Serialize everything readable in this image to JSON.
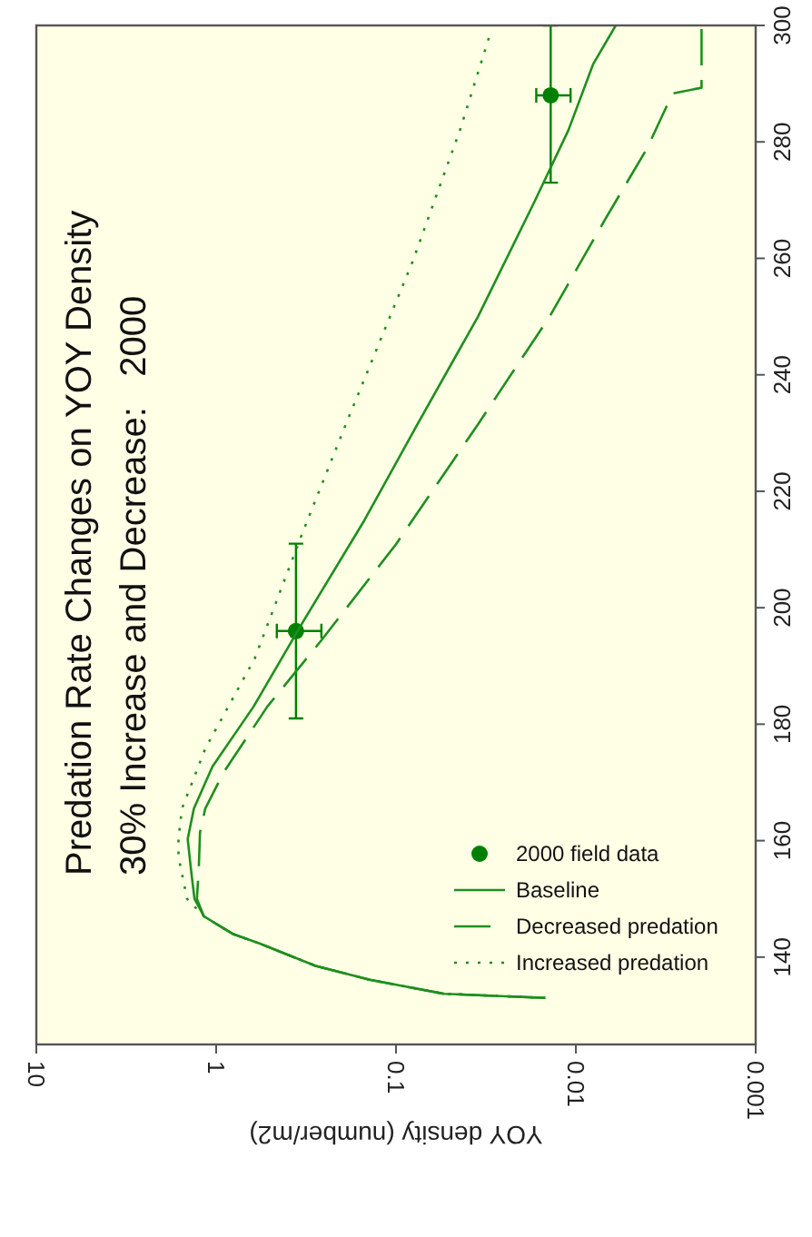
{
  "chart_data": {
    "type": "line",
    "title": "Predation Rate Changes on YOY Density",
    "subtitle": "30% Increase and Decrease:   2000",
    "xlabel": "YOY density (number/m2)",
    "log": "x",
    "xlim": [
      10,
      0.001
    ],
    "xticks": [
      10,
      1,
      0.1,
      0.01,
      0.001
    ],
    "ylim": [
      125,
      300
    ],
    "yticks": [
      140,
      160,
      180,
      200,
      220,
      240,
      260,
      280,
      300
    ],
    "legend": "bottom right",
    "grid": false,
    "series": [
      {
        "name": "2000 field data",
        "type": "scatter",
        "marker": "circle",
        "color": "#008000",
        "x": [
          0.36,
          0.0138
        ],
        "values": [
          196,
          288
        ],
        "errors": [
          [
            181,
            211
          ],
          [
            273,
            300
          ]
        ],
        "xerrors": [
          [
            0.26,
            0.46
          ],
          [
            0.0107,
            0.0166
          ]
        ]
      },
      {
        "name": "Baseline",
        "line_style": "solid",
        "color": "#1f8f1f",
        "values": [
          133,
          133.7,
          136.1,
          138.5,
          142.3,
          144,
          147,
          150,
          155,
          160.3,
          165.5,
          172.7,
          183,
          197.5,
          215,
          231.5,
          250,
          269.7,
          282,
          293.4,
          300
        ],
        "x": [
          0.0148,
          0.054,
          0.14,
          0.28,
          0.57,
          0.81,
          1.17,
          1.32,
          1.38,
          1.44,
          1.33,
          1.05,
          0.62,
          0.33,
          0.15,
          0.076,
          0.035,
          0.017,
          0.011,
          0.008,
          0.006
        ]
      },
      {
        "name": "Decreased predation",
        "line_style": "dashed",
        "color": "#1f8f1f",
        "values": [
          133,
          133.7,
          136.1,
          138.5,
          142.3,
          144,
          147,
          150,
          155,
          161.4,
          165.5,
          171.7,
          183,
          194.4,
          210.9,
          231.5,
          250,
          266.6,
          279,
          288.3,
          289.3,
          300
        ],
        "x": [
          0.0148,
          0.054,
          0.14,
          0.28,
          0.57,
          0.81,
          1.17,
          1.28,
          1.25,
          1.23,
          1.15,
          0.91,
          0.52,
          0.26,
          0.1,
          0.035,
          0.014,
          0.0069,
          0.004,
          0.0029,
          0.002,
          0.002
        ]
      },
      {
        "name": "Increased predation",
        "line_style": "dotted",
        "color": "#1f8f1f",
        "values": [
          133,
          133.7,
          136.1,
          138.5,
          142.3,
          144,
          147,
          150,
          157.2,
          160.3,
          165.5,
          175.8,
          191.3,
          213,
          231.5,
          259.4,
          282.1,
          298.5
        ],
        "x": [
          0.0148,
          0.054,
          0.14,
          0.28,
          0.57,
          0.81,
          1.17,
          1.45,
          1.62,
          1.62,
          1.55,
          1.15,
          0.61,
          0.33,
          0.19,
          0.081,
          0.044,
          0.03
        ]
      }
    ]
  }
}
